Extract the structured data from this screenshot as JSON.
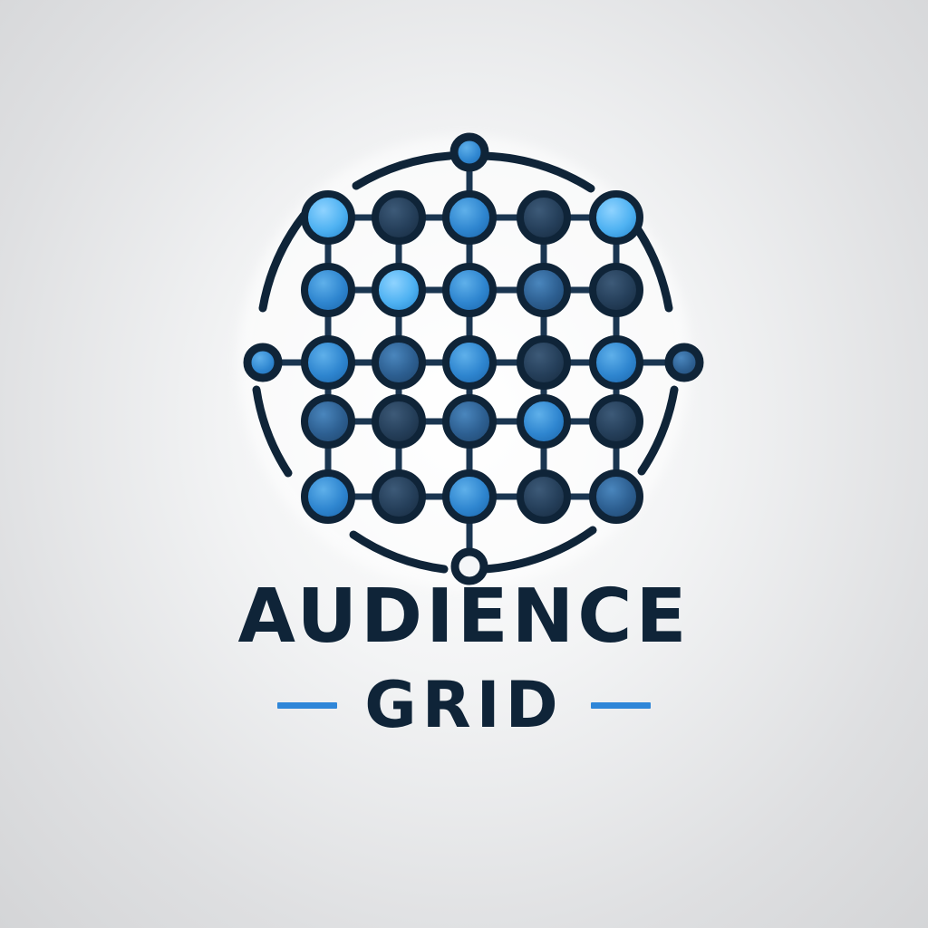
{
  "brand": {
    "line1": "AUDIENCE",
    "line2": "GRID"
  },
  "colors": {
    "navy": "#0f2438",
    "accent_blue": "#2f86d8",
    "light_blue": "#4fb2f2",
    "mid_blue": "#2f7fc6",
    "steel_blue": "#2a5a8a",
    "dark_node": "#1e3a55"
  },
  "icon": "network-grid-globe-icon"
}
